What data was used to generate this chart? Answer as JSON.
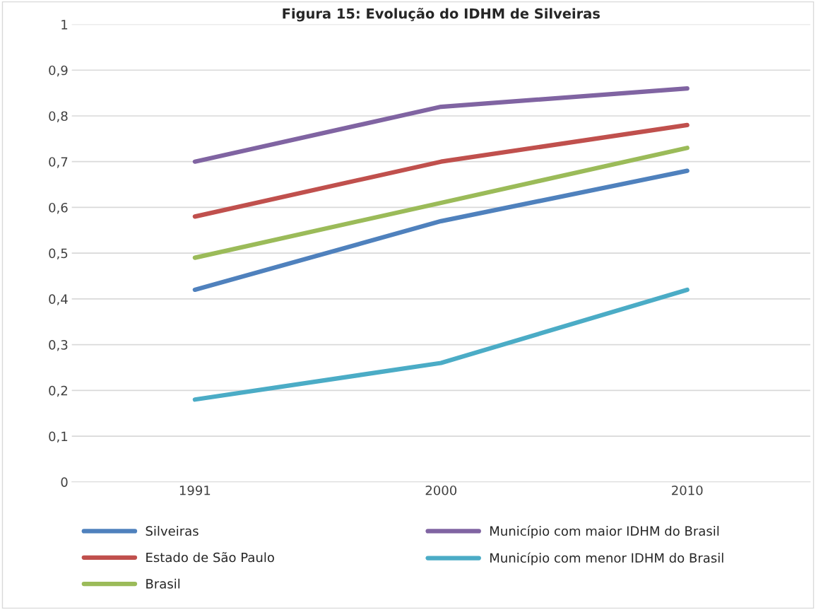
{
  "chart_data": {
    "type": "line",
    "title": "Figura 15: Evolução do IDHM de Silveiras",
    "categories": [
      "1991",
      "2000",
      "2010"
    ],
    "series": [
      {
        "name": "Silveiras",
        "color": "#4f81bd",
        "values": [
          0.42,
          0.57,
          0.68
        ]
      },
      {
        "name": "Estado de São Paulo",
        "color": "#c0504d",
        "values": [
          0.58,
          0.7,
          0.78
        ]
      },
      {
        "name": "Brasil",
        "color": "#9bbb59",
        "values": [
          0.49,
          0.61,
          0.73
        ]
      },
      {
        "name": "Município com maior IDHM do Brasil",
        "color": "#8064a2",
        "values": [
          0.7,
          0.82,
          0.86
        ]
      },
      {
        "name": "Município com menor IDHM do Brasil",
        "color": "#4bacc6",
        "values": [
          0.18,
          0.26,
          0.42
        ]
      }
    ],
    "ylim": [
      0,
      1
    ],
    "yticks": [
      {
        "value": 0,
        "label": "0"
      },
      {
        "value": 0.1,
        "label": "0,1"
      },
      {
        "value": 0.2,
        "label": "0,2"
      },
      {
        "value": 0.3,
        "label": "0,3"
      },
      {
        "value": 0.4,
        "label": "0,4"
      },
      {
        "value": 0.5,
        "label": "0,5"
      },
      {
        "value": 0.6,
        "label": "0,6"
      },
      {
        "value": 0.7,
        "label": "0,7"
      },
      {
        "value": 0.8,
        "label": "0,8"
      },
      {
        "value": 0.9,
        "label": "0,9"
      },
      {
        "value": 1,
        "label": "1"
      }
    ],
    "grid": "y",
    "legend": "bottom",
    "marker": "none",
    "line_style": "solid"
  }
}
